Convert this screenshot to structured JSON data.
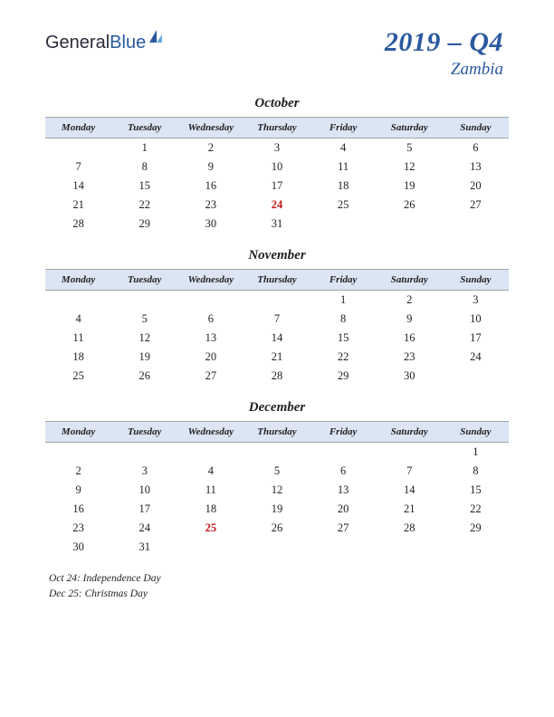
{
  "logo": {
    "part1": "General",
    "part2": "Blue"
  },
  "title": {
    "main": "2019 – Q4",
    "sub": "Zambia"
  },
  "colors": {
    "brand": "#2b5a9e",
    "header_bg": "#dce5f3",
    "text": "#222222",
    "holiday": "#c41818",
    "background": "#ffffff"
  },
  "weekdays": [
    "Monday",
    "Tuesday",
    "Wednesday",
    "Thursday",
    "Friday",
    "Saturday",
    "Sunday"
  ],
  "months": [
    {
      "name": "October",
      "weeks": [
        [
          "",
          "1",
          "2",
          "3",
          "4",
          "5",
          "6"
        ],
        [
          "7",
          "8",
          "9",
          "10",
          "11",
          "12",
          "13"
        ],
        [
          "14",
          "15",
          "16",
          "17",
          "18",
          "19",
          "20"
        ],
        [
          "21",
          "22",
          "23",
          "24",
          "25",
          "26",
          "27"
        ],
        [
          "28",
          "29",
          "30",
          "31",
          "",
          "",
          ""
        ]
      ],
      "holidays": [
        "24"
      ]
    },
    {
      "name": "November",
      "weeks": [
        [
          "",
          "",
          "",
          "",
          "1",
          "2",
          "3"
        ],
        [
          "4",
          "5",
          "6",
          "7",
          "8",
          "9",
          "10"
        ],
        [
          "11",
          "12",
          "13",
          "14",
          "15",
          "16",
          "17"
        ],
        [
          "18",
          "19",
          "20",
          "21",
          "22",
          "23",
          "24"
        ],
        [
          "25",
          "26",
          "27",
          "28",
          "29",
          "30",
          ""
        ]
      ],
      "holidays": []
    },
    {
      "name": "December",
      "weeks": [
        [
          "",
          "",
          "",
          "",
          "",
          "",
          "1"
        ],
        [
          "2",
          "3",
          "4",
          "5",
          "6",
          "7",
          "8"
        ],
        [
          "9",
          "10",
          "11",
          "12",
          "13",
          "14",
          "15"
        ],
        [
          "16",
          "17",
          "18",
          "19",
          "20",
          "21",
          "22"
        ],
        [
          "23",
          "24",
          "25",
          "26",
          "27",
          "28",
          "29"
        ],
        [
          "30",
          "31",
          "",
          "",
          "",
          "",
          ""
        ]
      ],
      "holidays": [
        "25"
      ]
    }
  ],
  "footnotes": [
    "Oct 24: Independence Day",
    "Dec 25: Christmas Day"
  ]
}
